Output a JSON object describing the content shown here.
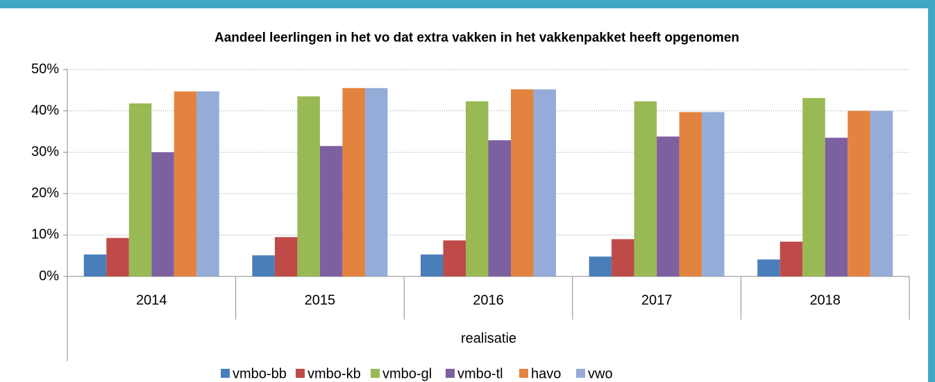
{
  "chart_data": {
    "type": "bar",
    "title": "Aandeel leerlingen in het vo dat extra vakken in het vakkenpakket heeft opgenomen",
    "xlabel": "realisatie",
    "categories": [
      "2014",
      "2015",
      "2016",
      "2017",
      "2018"
    ],
    "series": [
      {
        "name": "vmbo-bb",
        "color": "#4a7ebb",
        "values": [
          5.3,
          5.1,
          5.3,
          4.8,
          4.1
        ]
      },
      {
        "name": "vmbo-kb",
        "color": "#be4b48",
        "values": [
          9.3,
          9.5,
          8.7,
          9.0,
          8.4
        ]
      },
      {
        "name": "vmbo-gl",
        "color": "#98b954",
        "values": [
          41.8,
          43.5,
          42.3,
          42.3,
          43.1
        ]
      },
      {
        "name": "vmbo-tl",
        "color": "#7d60a0",
        "values": [
          30.0,
          31.5,
          32.9,
          33.8,
          33.5
        ]
      },
      {
        "name": "havo",
        "color": "#e2843f",
        "values": [
          44.7,
          45.5,
          45.2,
          39.7,
          40.0
        ]
      },
      {
        "name": "vwo",
        "color": "#95acd8",
        "values": [
          44.7,
          45.5,
          45.2,
          39.7,
          40.0
        ]
      }
    ],
    "ylim": [
      0,
      50
    ],
    "yticks": [
      {
        "value": 0,
        "label": "0%"
      },
      {
        "value": 10,
        "label": "10%"
      },
      {
        "value": 20,
        "label": "20%"
      },
      {
        "value": 30,
        "label": "30%"
      },
      {
        "value": 40,
        "label": "40%"
      },
      {
        "value": 50,
        "label": "50%"
      }
    ],
    "grid": true,
    "legend": "bottom"
  }
}
